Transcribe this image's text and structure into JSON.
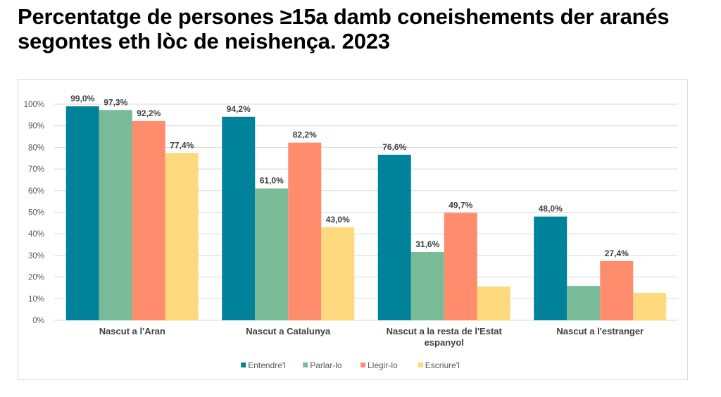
{
  "title": "Percentatge de persones ≥15a damb coneishements der aranés segontes eth lòc de neishença. 2023",
  "chart_data": {
    "type": "bar",
    "title": "Percentatge de persones ≥15a damb coneishements der aranés segontes eth lòc de neishença. 2023",
    "xlabel": "",
    "ylabel": "",
    "ylim": [
      0,
      100
    ],
    "yticks": [
      0,
      10,
      20,
      30,
      40,
      50,
      60,
      70,
      80,
      90,
      100
    ],
    "ytick_labels": [
      "0%",
      "10%",
      "20%",
      "30%",
      "40%",
      "50%",
      "60%",
      "70%",
      "80%",
      "90%",
      "100%"
    ],
    "grid": true,
    "legend_position": "bottom",
    "categories": [
      [
        "Nascut a l'Aran"
      ],
      [
        "Nascut a Catalunya"
      ],
      [
        "Nascut a la resta de l'Estat",
        "espanyol"
      ],
      [
        "Nascut a l'estranger"
      ]
    ],
    "series": [
      {
        "name": "Entendre'l",
        "color": "#00829b",
        "values": [
          99.0,
          94.2,
          76.6,
          48.0
        ],
        "labels": [
          "99,0%",
          "94,2%",
          "76,6%",
          "48,0%"
        ]
      },
      {
        "name": "Parlar-lo",
        "color": "#78bb96",
        "values": [
          97.3,
          61.0,
          31.6,
          15.9
        ],
        "labels": [
          "97,3%",
          "61,0%",
          "31,6%",
          ""
        ]
      },
      {
        "name": "Llegir-lo",
        "color": "#ff8c6d",
        "values": [
          92.2,
          82.2,
          49.7,
          27.4
        ],
        "labels": [
          "92,2%",
          "82,2%",
          "49,7%",
          "27,4%"
        ]
      },
      {
        "name": "Escriure'l",
        "color": "#ffd97d",
        "values": [
          77.4,
          43.0,
          15.6,
          12.7
        ],
        "labels": [
          "77,4%",
          "43,0%",
          "",
          ""
        ]
      }
    ]
  }
}
